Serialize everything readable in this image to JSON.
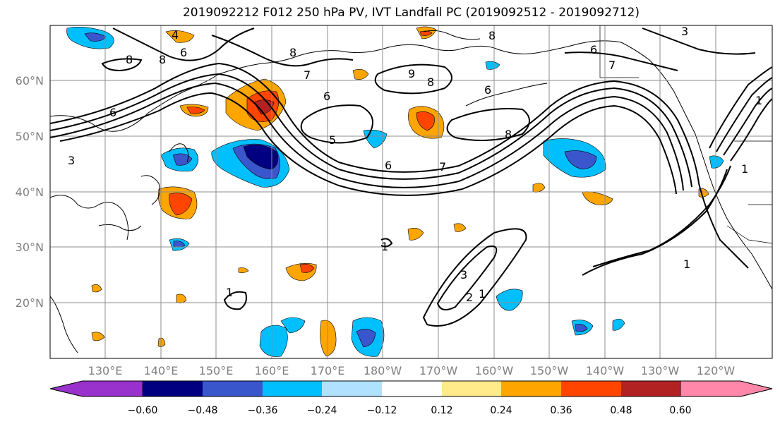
{
  "title": "2019092212 F012 250 hPa PV, IVT Landfall PC (2019092512 - 2019092712)",
  "lat_labels": [
    "60°N",
    "50°N",
    "40°N",
    "30°N",
    "20°N"
  ],
  "lon_labels": [
    "130°E",
    "140°E",
    "150°E",
    "160°E",
    "170°E",
    "180°W",
    "170°W",
    "160°W",
    "150°W",
    "140°W",
    "130°W",
    "120°W"
  ],
  "colorbar": {
    "ticks": [
      "−0.60",
      "−0.48",
      "−0.36",
      "−0.24",
      "−0.12",
      "0.12",
      "0.24",
      "0.36",
      "0.48",
      "0.60"
    ],
    "colors": [
      "#9932cc",
      "#000080",
      "#3a56cc",
      "#00bfff",
      "#b0e2ff",
      "#ffffff",
      "#ffeb8a",
      "#ffa500",
      "#ff4500",
      "#b22222",
      "#ff88aa"
    ]
  },
  "contour_labels": [
    "8",
    "6",
    "4",
    "8",
    "6",
    "3",
    "8",
    "6",
    "5",
    "6",
    "7",
    "8",
    "6",
    "7",
    "8",
    "6",
    "8",
    "9",
    "7",
    "1",
    "1",
    "3",
    "2",
    "1",
    "1",
    "1",
    "1",
    "3"
  ]
}
